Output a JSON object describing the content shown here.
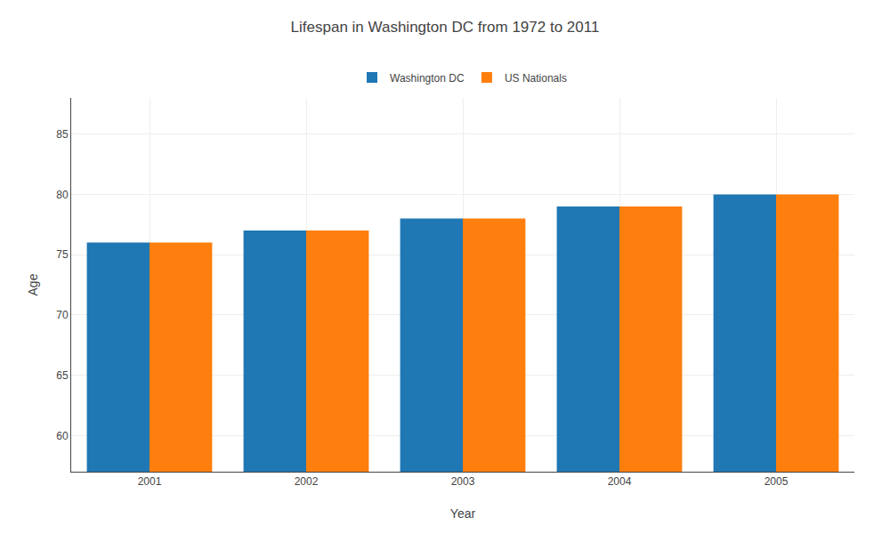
{
  "chart_data": {
    "type": "bar",
    "title": "Lifespan in Washington DC from 1972 to 2011",
    "xlabel": "Year",
    "ylabel": "Age",
    "categories": [
      "2001",
      "2002",
      "2003",
      "2004",
      "2005"
    ],
    "series": [
      {
        "name": "Washington DC",
        "values": [
          76,
          77,
          78,
          79,
          80
        ]
      },
      {
        "name": "US Nationals",
        "values": [
          76,
          77,
          78,
          79,
          80
        ]
      }
    ],
    "ylim": [
      57,
      88
    ],
    "yticks": [
      60,
      65,
      70,
      75,
      80,
      85
    ],
    "grid": true,
    "legend": "top"
  }
}
